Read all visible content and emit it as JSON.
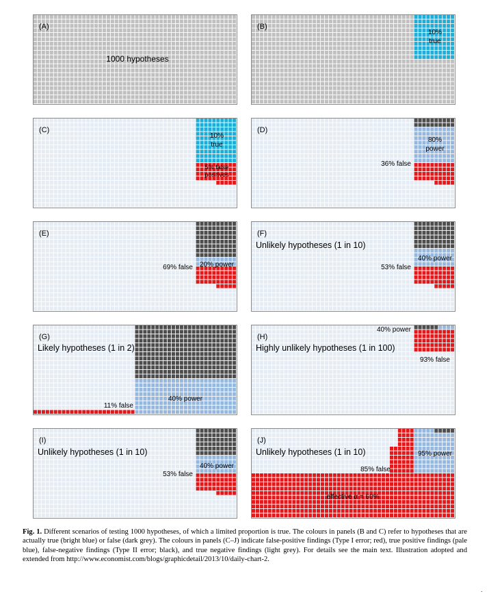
{
  "colors": {
    "hypothesis": "#c0c0c0",
    "true_hypothesis": "#1eaed8",
    "false_positive": "#e0191c",
    "true_positive": "#96b8df",
    "false_negative": "#4d4d4d",
    "true_negative": "#e5ecf3",
    "grid_line": "#ffffff"
  },
  "grid": {
    "cols": 50,
    "rows": 20,
    "total": 1000
  },
  "panels": [
    {
      "id": "A",
      "label": "(A)",
      "title": "",
      "annotations": [
        {
          "text": "1000 hypotheses"
        }
      ],
      "cells": [
        {
          "kind": "hypothesis",
          "count": 1000
        }
      ]
    },
    {
      "id": "B",
      "label": "(B)",
      "title": "",
      "annotations": [
        {
          "text": "10%"
        },
        {
          "text": "true"
        }
      ],
      "cells": [
        {
          "kind": "hypothesis",
          "count": 900
        },
        {
          "kind": "true_hypothesis",
          "count": 100
        }
      ]
    },
    {
      "id": "C",
      "label": "(C)",
      "title": "",
      "annotations": [
        {
          "text": "10%"
        },
        {
          "text": "true"
        },
        {
          "text": "5% false"
        },
        {
          "text": "positives"
        }
      ],
      "cells": [
        {
          "kind": "true_negative",
          "count": 855
        },
        {
          "kind": "false_positive",
          "count": 45
        },
        {
          "kind": "true_hypothesis",
          "count": 100
        }
      ]
    },
    {
      "id": "D",
      "label": "(D)",
      "title": "",
      "annotations": [
        {
          "text": "80%"
        },
        {
          "text": "power"
        },
        {
          "text": "36% false"
        }
      ],
      "cells": [
        {
          "kind": "true_negative",
          "count": 855
        },
        {
          "kind": "false_positive",
          "count": 45
        },
        {
          "kind": "true_positive",
          "count": 80
        },
        {
          "kind": "false_negative",
          "count": 20
        }
      ]
    },
    {
      "id": "E",
      "label": "(E)",
      "title": "",
      "annotations": [
        {
          "text": "20% power"
        },
        {
          "text": "69% false"
        }
      ],
      "cells": [
        {
          "kind": "true_negative",
          "count": 855
        },
        {
          "kind": "false_positive",
          "count": 45
        },
        {
          "kind": "true_positive",
          "count": 20
        },
        {
          "kind": "false_negative",
          "count": 80
        }
      ]
    },
    {
      "id": "F",
      "label": "(F)",
      "title": "Unlikely hypotheses (1 in 10)",
      "annotations": [
        {
          "text": "40% power"
        },
        {
          "text": "53% false"
        }
      ],
      "cells": [
        {
          "kind": "true_negative",
          "count": 855
        },
        {
          "kind": "false_positive",
          "count": 45
        },
        {
          "kind": "true_positive",
          "count": 40
        },
        {
          "kind": "false_negative",
          "count": 60
        }
      ]
    },
    {
      "id": "G",
      "label": "(G)",
      "title": "Likely hypotheses (1 in 2)",
      "annotations": [
        {
          "text": "40% power"
        },
        {
          "text": "11% false"
        }
      ],
      "cells": [
        {
          "kind": "true_negative",
          "count": 475
        },
        {
          "kind": "false_positive",
          "count": 25
        },
        {
          "kind": "true_positive",
          "count": 200
        },
        {
          "kind": "false_negative",
          "count": 300
        }
      ]
    },
    {
      "id": "H",
      "label": "(H)",
      "title": "Highly unlikely hypotheses (1 in 100)",
      "annotations": [
        {
          "text": "40% power"
        },
        {
          "text": "93% false"
        }
      ],
      "cells": [
        {
          "kind": "true_negative",
          "count": 940
        },
        {
          "kind": "false_positive",
          "count": 50
        },
        {
          "kind": "true_positive",
          "count": 4
        },
        {
          "kind": "false_negative",
          "count": 6
        }
      ]
    },
    {
      "id": "I",
      "label": "(I)",
      "title": "Unlikely hypotheses (1 in 10)",
      "annotations": [
        {
          "text": "40% power"
        },
        {
          "text": "53% false"
        }
      ],
      "cells": [
        {
          "kind": "true_negative",
          "count": 855
        },
        {
          "kind": "false_positive",
          "count": 45
        },
        {
          "kind": "true_positive",
          "count": 40
        },
        {
          "kind": "false_negative",
          "count": 60
        }
      ]
    },
    {
      "id": "J",
      "label": "(J)",
      "title": "Unlikely hypotheses (1 in 10)",
      "annotations": [
        {
          "text": "95% power"
        },
        {
          "text": "85% false"
        },
        {
          "text": "effective α = 60%"
        }
      ],
      "cells": [
        {
          "kind": "true_negative",
          "count": 360
        },
        {
          "kind": "false_positive",
          "count": 540
        },
        {
          "kind": "true_positive",
          "count": 95
        },
        {
          "kind": "false_negative",
          "count": 5
        }
      ]
    }
  ],
  "caption": {
    "fig_label": "Fig. 1.",
    "text": "Different scenarios of testing 1000 hypotheses, of which a limited proportion is true. The colours in panels (B and C) refer to hypotheses that are actually true (bright blue) or false (dark grey). The colours in panels (C–J) indicate false-positive findings (Type I error; red), true positive findings (pale blue), false-negative findings (Type II error; black), and true negative findings (light grey). For details see the main text. Illustration adopted and extended from http://www.economist.com/blogs/graphicdetail/2013/10/daily-chart-2."
  },
  "footer_mark": "."
}
